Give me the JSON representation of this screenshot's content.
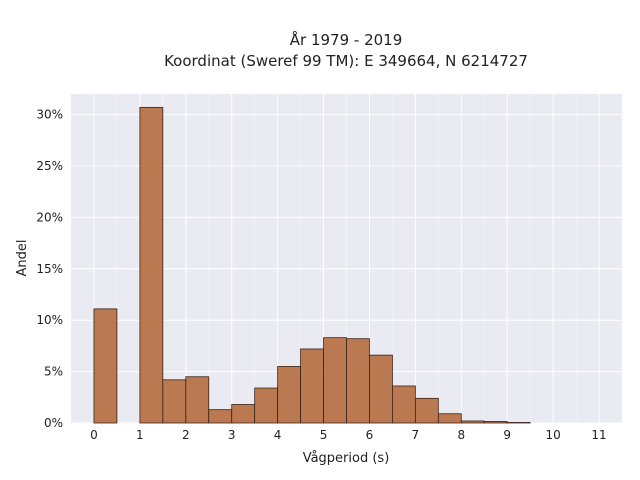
{
  "chart_data": {
    "type": "bar",
    "title": "År 1979 - 2019",
    "subtitle": "Koordinat (Sweref 99 TM): E 349664, N 6214727",
    "xlabel": "Vågperiod (s)",
    "ylabel": "Andel",
    "xlim": [
      -0.5,
      11.5
    ],
    "ylim": [
      0,
      32
    ],
    "x_ticks": [
      "0",
      "1",
      "2",
      "3",
      "4",
      "5",
      "6",
      "7",
      "8",
      "9",
      "10",
      "11"
    ],
    "y_ticks": [
      "0%",
      "5%",
      "10%",
      "15%",
      "20%",
      "25%",
      "30%"
    ],
    "grid": true,
    "bar_color": "#b87348",
    "background_color": "#eaeaf2",
    "bins": [
      {
        "start": 0.0,
        "end": 0.5,
        "value": 11.1
      },
      {
        "start": 1.0,
        "end": 1.5,
        "value": 30.7
      },
      {
        "start": 1.5,
        "end": 2.0,
        "value": 4.2
      },
      {
        "start": 2.0,
        "end": 2.5,
        "value": 4.5
      },
      {
        "start": 2.5,
        "end": 3.0,
        "value": 1.3
      },
      {
        "start": 3.0,
        "end": 3.5,
        "value": 1.8
      },
      {
        "start": 3.5,
        "end": 4.0,
        "value": 3.4
      },
      {
        "start": 4.0,
        "end": 4.5,
        "value": 5.5
      },
      {
        "start": 4.5,
        "end": 5.0,
        "value": 7.2
      },
      {
        "start": 5.0,
        "end": 5.5,
        "value": 8.3
      },
      {
        "start": 5.5,
        "end": 6.0,
        "value": 8.2
      },
      {
        "start": 6.0,
        "end": 6.5,
        "value": 6.6
      },
      {
        "start": 6.5,
        "end": 7.0,
        "value": 3.6
      },
      {
        "start": 7.0,
        "end": 7.5,
        "value": 2.4
      },
      {
        "start": 7.5,
        "end": 8.0,
        "value": 0.9
      },
      {
        "start": 8.0,
        "end": 8.5,
        "value": 0.2
      },
      {
        "start": 8.5,
        "end": 9.0,
        "value": 0.15
      },
      {
        "start": 9.0,
        "end": 9.5,
        "value": 0.05
      }
    ]
  }
}
